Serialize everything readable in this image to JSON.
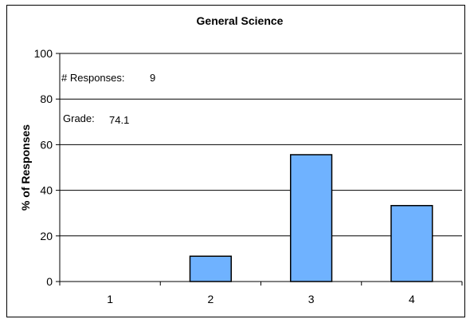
{
  "chart_data": {
    "type": "bar",
    "title": "General Science",
    "xlabel": "",
    "ylabel": "% of Responses",
    "categories": [
      "1",
      "2",
      "3",
      "4"
    ],
    "values": [
      0,
      11.1,
      55.6,
      33.3
    ],
    "ylim": [
      0,
      100
    ],
    "yticks": [
      0,
      20,
      40,
      60,
      80,
      100
    ],
    "grid": true,
    "legend": "none",
    "bar_color": "#6fb2ff",
    "annotations": [
      {
        "label": "# Responses:",
        "value": "9"
      },
      {
        "label": "Grade:",
        "value": "74.1"
      }
    ]
  }
}
